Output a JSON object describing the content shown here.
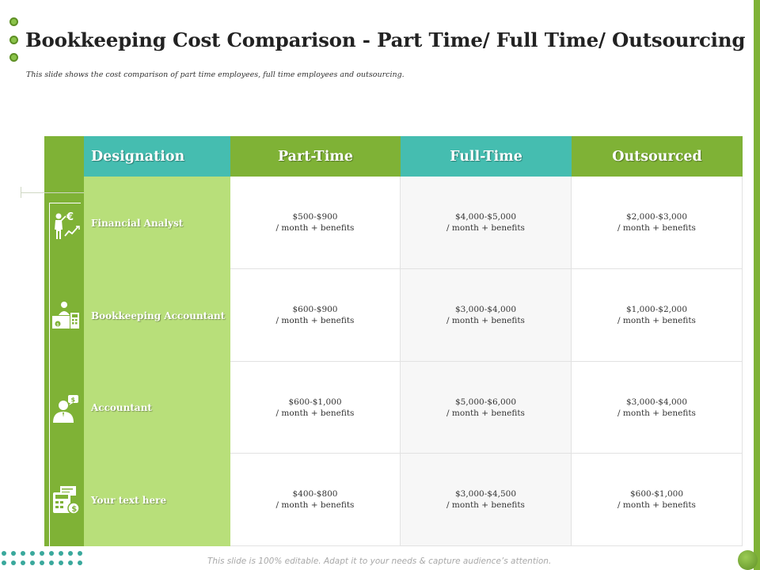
{
  "slide": {
    "title": "Bookkeeping Cost Comparison - Part Time/ Full Time/ Outsourcing",
    "subtitle": "This slide shows the cost comparison of part time employees, full time employees and outsourcing.",
    "footer": "This slide is 100% editable. Adapt it to your needs & capture audience’s attention.",
    "colors": {
      "green": "#7fb236",
      "light_green": "#b8df7a",
      "teal": "#45bdb0"
    }
  },
  "table": {
    "headers": [
      "Designation",
      "Part-Time",
      "Full-Time",
      "Outsourced"
    ],
    "rows": [
      {
        "designation": "Financial Analyst",
        "icon": "financial-analyst-icon",
        "part_time": [
          "$500-$900",
          "/ month + benefits"
        ],
        "full_time": [
          "$4,000-$5,000",
          "/ month + benefits"
        ],
        "outsourced": [
          "$2,000-$3,000",
          "/ month + benefits"
        ]
      },
      {
        "designation": "Bookkeeping Accountant",
        "icon": "bookkeeper-desk-icon",
        "part_time": [
          "$600-$900",
          "/ month + benefits"
        ],
        "full_time": [
          "$3,000-$4,000",
          "/ month + benefits"
        ],
        "outsourced": [
          "$1,000-$2,000",
          "/ month + benefits"
        ]
      },
      {
        "designation": "Accountant",
        "icon": "accountant-person-dollar-icon",
        "part_time": [
          "$600-$1,000",
          "/ month + benefits"
        ],
        "full_time": [
          "$5,000-$6,000",
          "/ month + benefits"
        ],
        "outsourced": [
          "$3,000-$4,000",
          "/ month + benefits"
        ]
      },
      {
        "designation": "Your text here",
        "icon": "calculator-invoice-icon",
        "part_time": [
          "$400-$800",
          "/ month + benefits"
        ],
        "full_time": [
          "$3,000-$4,500",
          "/ month + benefits"
        ],
        "outsourced": [
          "$600-$1,000",
          "/ month + benefits"
        ]
      }
    ]
  }
}
